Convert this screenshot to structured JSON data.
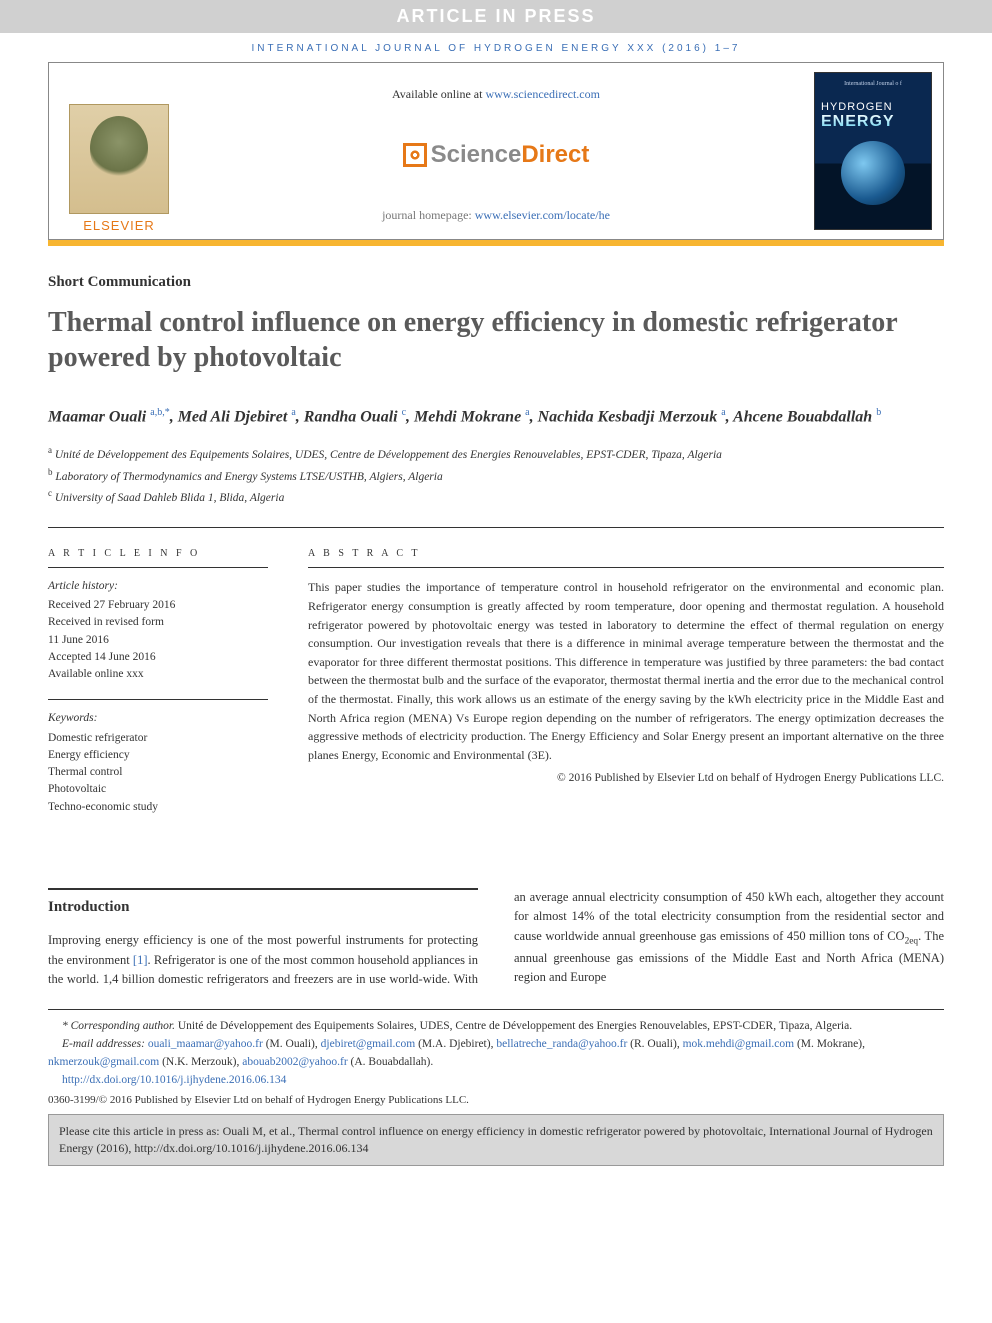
{
  "banner": "ARTICLE IN PRESS",
  "citation_top": "INTERNATIONAL JOURNAL OF HYDROGEN ENERGY XXX (2016) 1–7",
  "header": {
    "available_prefix": "Available online at ",
    "available_link": "www.sciencedirect.com",
    "sd_sci": "Science",
    "sd_dir": "Direct",
    "homepage_prefix": "journal homepage: ",
    "homepage_link": "www.elsevier.com/locate/he",
    "elsevier": "ELSEVIER",
    "cover_top": "International Journal o f",
    "cover_line1": "HYDROGEN",
    "cover_line2": "ENERGY"
  },
  "article": {
    "type": "Short Communication",
    "title": "Thermal control influence on energy efficiency in domestic refrigerator powered by photovoltaic",
    "authors_html": "Maamar Ouali <sup>a,b,*</sup>, Med Ali Djebiret <sup>a</sup>, Randha Ouali <sup>c</sup>, Mehdi Mokrane <sup>a</sup>, Nachida Kesbadji Merzouk <sup>a</sup>, Ahcene Bouabdallah <sup>b</sup>",
    "affiliations": [
      {
        "sup": "a",
        "text": "Unité de Développement des Equipements Solaires, UDES, Centre de Développement des Energies Renouvelables, EPST-CDER, Tipaza, Algeria"
      },
      {
        "sup": "b",
        "text": "Laboratory of Thermodynamics and Energy Systems LTSE/USTHB, Algiers, Algeria"
      },
      {
        "sup": "c",
        "text": "University of Saad Dahleb Blida 1, Blida, Algeria"
      }
    ]
  },
  "info": {
    "heading": "A R T I C L E  I N F O",
    "history_label": "Article history:",
    "history": [
      "Received 27 February 2016",
      "Received in revised form",
      "11 June 2016",
      "Accepted 14 June 2016",
      "Available online xxx"
    ],
    "keywords_label": "Keywords:",
    "keywords": [
      "Domestic refrigerator",
      "Energy efficiency",
      "Thermal control",
      "Photovoltaic",
      "Techno-economic study"
    ]
  },
  "abstract": {
    "heading": "A B S T R A C T",
    "text": "This paper studies the importance of temperature control in household refrigerator on the environmental and economic plan. Refrigerator energy consumption is greatly affected by room temperature, door opening and thermostat regulation. A household refrigerator powered by photovoltaic energy was tested in laboratory to determine the effect of thermal regulation on energy consumption. Our investigation reveals that there is a difference in minimal average temperature between the thermostat and the evaporator for three different thermostat positions. This difference in temperature was justified by three parameters: the bad contact between the thermostat bulb and the surface of the evaporator, thermostat thermal inertia and the error due to the mechanical control of the thermostat. Finally, this work allows us an estimate of the energy saving by the kWh electricity price in the Middle East and North Africa region (MENA) Vs Europe region depending on the number of refrigerators. The energy optimization decreases the aggressive methods of electricity production. The Energy Efficiency and Solar Energy present an important alternative on the three planes Energy, Economic and Environmental (3E).",
    "copyright": "© 2016 Published by Elsevier Ltd on behalf of Hydrogen Energy Publications LLC."
  },
  "body": {
    "intro_heading": "Introduction",
    "col1": "Improving energy efficiency is one of the most powerful instruments for protecting the environment [1]. Refrigerator is one of the most common household appliances in the world. 1,4 billion domestic refrigerators and freezers are in use",
    "ref1": "[1]",
    "col2": "world-wide. With an average annual electricity consumption of 450 kWh each, altogether they account for almost 14% of the total electricity consumption from the residential sector and cause worldwide annual greenhouse gas emissions of 450 million tons of CO2eq. The annual greenhouse gas emissions of the Middle East and North Africa (MENA) region and Europe"
  },
  "footnotes": {
    "corr_label": "* Corresponding author.",
    "corr_text": " Unité de Développement des Equipements Solaires, UDES, Centre de Développement des Energies Renouvelables, EPST-CDER, Tipaza, Algeria.",
    "email_label": "E-mail addresses: ",
    "emails": [
      {
        "addr": "ouali_maamar@yahoo.fr",
        "who": "(M. Ouali)"
      },
      {
        "addr": "djebiret@gmail.com",
        "who": "(M.A. Djebiret)"
      },
      {
        "addr": "bellatreche_randa@yahoo.fr",
        "who": "(R. Ouali)"
      },
      {
        "addr": "mok.mehdi@gmail.com",
        "who": "(M. Mokrane)"
      },
      {
        "addr": "nkmerzouk@gmail.com",
        "who": "(N.K. Merzouk)"
      },
      {
        "addr": "abouab2002@yahoo.fr",
        "who": "(A. Bouabdallah)"
      }
    ],
    "doi": "http://dx.doi.org/10.1016/j.ijhydene.2016.06.134",
    "issn": "0360-3199/© 2016 Published by Elsevier Ltd on behalf of Hydrogen Energy Publications LLC."
  },
  "citebox": "Please cite this article in press as: Ouali M, et al., Thermal control influence on energy efficiency in domestic refrigerator powered by photovoltaic, International Journal of Hydrogen Energy (2016), http://dx.doi.org/10.1016/j.ijhydene.2016.06.134",
  "colors": {
    "link": "#3b6fb6",
    "orange": "#e67817",
    "bar": "#f7b531",
    "banner_bg": "#d0d0d0",
    "cite_bg": "#d8d8d8"
  }
}
